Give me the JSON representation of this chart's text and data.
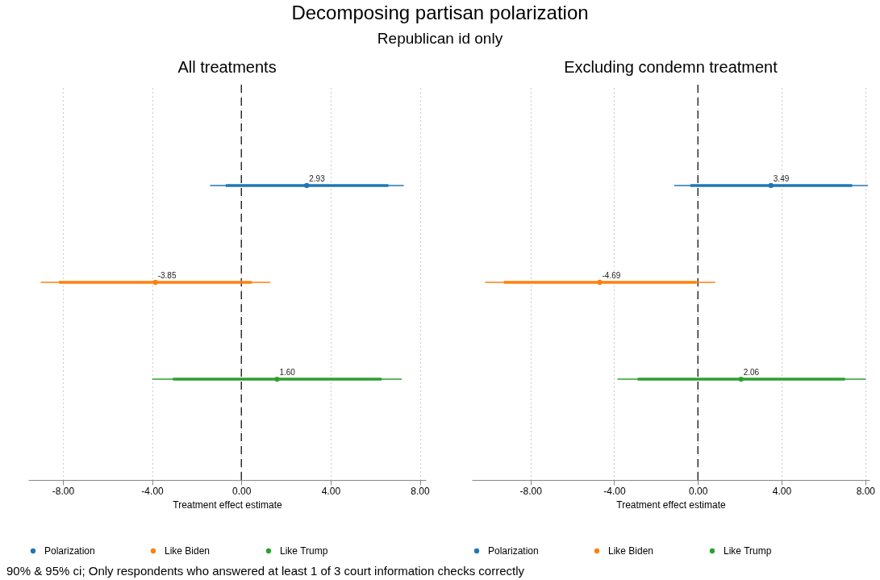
{
  "chart_data": [
    {
      "type": "other",
      "title": "Decomposing partisan polarization",
      "subtitle": "Republican id only",
      "annotations": [
        "90% & 95% ci; Only respondents who answered at least 1 of 3 court information checks correctly"
      ]
    },
    {
      "type": "scatter",
      "orientation": "horizontal",
      "title": "All treatments",
      "xlabel": "Treatment effect estimate",
      "categories": [
        null,
        null,
        null
      ],
      "xlim": [
        -9.55,
        8.27
      ],
      "xticks": [
        {
          "value": -8,
          "label": "-8.00"
        },
        {
          "value": -4,
          "label": "-4.00"
        },
        {
          "value": 0,
          "label": "0.00"
        },
        {
          "value": 4,
          "label": "4.00"
        },
        {
          "value": 8,
          "label": "8.00"
        }
      ],
      "grid": "x",
      "legend": "bottom",
      "marker": "circle",
      "ref_lines": [
        {
          "axis": "x",
          "value": 0,
          "color": "#000000",
          "line_style": "dashed"
        }
      ],
      "series": [
        {
          "name": "Polarization",
          "color": "#1f77b4",
          "values": [
            2.93,
            null,
            null
          ],
          "errors": [
            [
              -1.4,
              7.28
            ],
            null,
            null
          ],
          "value_labels": [
            "2.93",
            null,
            null
          ]
        },
        {
          "name": "Like Biden",
          "color": "#ff7f0e",
          "values": [
            null,
            -3.85,
            null
          ],
          "errors": [
            null,
            [
              -8.99,
              1.29
            ],
            null
          ],
          "value_labels": [
            null,
            "-3.85",
            null
          ]
        },
        {
          "name": "Like Trump",
          "color": "#2ca02c",
          "values": [
            null,
            null,
            1.6
          ],
          "errors": [
            null,
            null,
            [
              -3.99,
              7.19
            ]
          ],
          "value_labels": [
            null,
            null,
            "1.60"
          ]
        },
        {
          "type": "bar",
          "color": "#1f77b4",
          "base": [
            -0.7,
            null,
            null
          ],
          "values": [
            7.29,
            null,
            null
          ]
        },
        {
          "type": "bar",
          "color": "#ff7f0e",
          "base": [
            null,
            -8.17,
            null
          ],
          "values": [
            null,
            8.64,
            null
          ]
        },
        {
          "type": "bar",
          "color": "#2ca02c",
          "base": [
            null,
            null,
            -3.07
          ],
          "values": [
            null,
            null,
            9.36
          ]
        }
      ]
    },
    {
      "type": "scatter",
      "orientation": "horizontal",
      "title": "Excluding condemn treatment",
      "xlabel": "Treatment effect estimate",
      "categories": [
        null,
        null,
        null
      ],
      "xlim": [
        -10.8,
        8.2
      ],
      "xticks": [
        {
          "value": -8,
          "label": "-8.00"
        },
        {
          "value": -4,
          "label": "-4.00"
        },
        {
          "value": 0,
          "label": "0.00"
        },
        {
          "value": 4,
          "label": "4.00"
        },
        {
          "value": 8,
          "label": "8.00"
        }
      ],
      "grid": "x",
      "legend": "bottom",
      "marker": "circle",
      "ref_lines": [
        {
          "axis": "x",
          "value": 0,
          "color": "#000000",
          "line_style": "dashed"
        }
      ],
      "series": [
        {
          "name": "Polarization",
          "color": "#1f77b4",
          "values": [
            3.49,
            null,
            null
          ],
          "errors": [
            [
              -1.13,
              8.12
            ],
            null,
            null
          ],
          "value_labels": [
            "3.49",
            null,
            null
          ]
        },
        {
          "name": "Like Biden",
          "color": "#ff7f0e",
          "values": [
            null,
            -4.69,
            null
          ],
          "errors": [
            null,
            [
              -10.17,
              0.83
            ],
            null
          ],
          "value_labels": [
            null,
            "-4.69",
            null
          ]
        },
        {
          "name": "Like Trump",
          "color": "#2ca02c",
          "values": [
            null,
            null,
            2.06
          ],
          "errors": [
            null,
            null,
            [
              -3.84,
              8.02
            ]
          ],
          "value_labels": [
            null,
            null,
            "2.06"
          ]
        },
        {
          "type": "bar",
          "color": "#1f77b4",
          "base": [
            -0.36,
            null,
            null
          ],
          "values": [
            7.73,
            null,
            null
          ]
        },
        {
          "type": "bar",
          "color": "#ff7f0e",
          "base": [
            null,
            -9.27,
            null
          ],
          "values": [
            null,
            9.21,
            null
          ]
        },
        {
          "type": "bar",
          "color": "#2ca02c",
          "base": [
            null,
            null,
            -2.88
          ],
          "values": [
            null,
            null,
            9.91
          ]
        }
      ]
    }
  ]
}
